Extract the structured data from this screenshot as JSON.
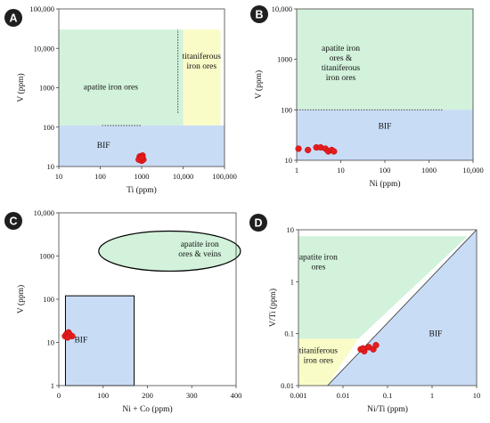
{
  "colors": {
    "green": "#d2f2db",
    "yellow": "#fafcc8",
    "blue": "#c9dcf6",
    "red": "#e31d1d",
    "badge": "#1f1f1f"
  },
  "chart_data": [
    {
      "id": "A",
      "type": "scatter",
      "xlabel": "Ti (ppm)",
      "ylabel": "V (ppm)",
      "xscale": "log",
      "yscale": "log",
      "xlim": [
        10,
        100000
      ],
      "ylim": [
        10,
        100000
      ],
      "xticks": [
        10,
        100,
        1000,
        10000,
        100000
      ],
      "xticklabels": [
        "10",
        "100",
        "1000",
        "10,000",
        "100,000"
      ],
      "yticks": [
        10,
        100,
        1000,
        10000,
        100000
      ],
      "yticklabels": [
        "10",
        "100",
        "1000",
        "10,000",
        "100,000"
      ],
      "fields": [
        {
          "label": "apatite iron ores",
          "color": "green",
          "rect": {
            "x": [
              10,
              10000
            ],
            "y": [
              110,
              30000
            ]
          },
          "text_at": [
            180,
            900
          ]
        },
        {
          "label": "titaniferous iron ores",
          "color": "yellow",
          "rect": {
            "x": [
              10000,
              80000
            ],
            "y": [
              110,
              30000
            ]
          },
          "text_at": [
            28000,
            4200
          ]
        },
        {
          "label": "BIF",
          "color": "blue",
          "rect": {
            "x": [
              10,
              100000
            ],
            "y": [
              10,
              110
            ]
          },
          "text_at": [
            120,
            30
          ]
        }
      ],
      "lines": [
        {
          "x": [
            110,
            1000
          ],
          "y": [
            110,
            110
          ],
          "style": "dotted"
        },
        {
          "x": [
            7500,
            7500
          ],
          "y": [
            230,
            30000
          ],
          "style": "dotted"
        }
      ],
      "points": [
        {
          "x": 900,
          "y": 18
        },
        {
          "x": 1050,
          "y": 19
        },
        {
          "x": 950,
          "y": 16
        },
        {
          "x": 1000,
          "y": 14
        },
        {
          "x": 1100,
          "y": 15
        },
        {
          "x": 850,
          "y": 15
        },
        {
          "x": 1000,
          "y": 17
        }
      ]
    },
    {
      "id": "B",
      "type": "scatter",
      "xlabel": "Ni (ppm)",
      "ylabel": "V (ppm)",
      "xscale": "log",
      "yscale": "log",
      "xlim": [
        1,
        10000
      ],
      "ylim": [
        10,
        10000
      ],
      "xticks": [
        1,
        10,
        100,
        1000,
        10000
      ],
      "xticklabels": [
        "1",
        "10",
        "100",
        "1000",
        "10,000"
      ],
      "yticks": [
        10,
        100,
        1000,
        10000
      ],
      "yticklabels": [
        "10",
        "100",
        "1000",
        "10,000"
      ],
      "fields": [
        {
          "label": "apatite iron ores & titaniferous iron ores",
          "color": "green",
          "rect": {
            "x": [
              1,
              10000
            ],
            "y": [
              100,
              10000
            ]
          },
          "text_at": [
            10,
            800
          ]
        },
        {
          "label": "BIF",
          "color": "blue",
          "rect": {
            "x": [
              1,
              10000
            ],
            "y": [
              10,
              100
            ]
          },
          "text_at": [
            100,
            42
          ]
        }
      ],
      "lines": [
        {
          "x": [
            1,
            2000
          ],
          "y": [
            100,
            100
          ],
          "style": "dotted"
        }
      ],
      "points": [
        {
          "x": 1.1,
          "y": 17
        },
        {
          "x": 1.8,
          "y": 16
        },
        {
          "x": 2.8,
          "y": 18
        },
        {
          "x": 3.5,
          "y": 18
        },
        {
          "x": 4.5,
          "y": 17
        },
        {
          "x": 5.2,
          "y": 15
        },
        {
          "x": 6.2,
          "y": 16
        },
        {
          "x": 7,
          "y": 15
        }
      ]
    },
    {
      "id": "C",
      "type": "scatter",
      "xlabel": "Ni + Co (ppm)",
      "ylabel": "V (ppm)",
      "xscale": "linear",
      "yscale": "log",
      "xlim": [
        0,
        400
      ],
      "ylim": [
        1,
        10000
      ],
      "xticks": [
        0,
        100,
        200,
        300,
        400
      ],
      "xticklabels": [
        "0",
        "100",
        "200",
        "300",
        "400"
      ],
      "yticks": [
        1,
        10,
        100,
        1000,
        10000
      ],
      "yticklabels": [
        "1",
        "10",
        "100",
        "1000",
        "10,000"
      ],
      "fields": [
        {
          "label": "apatite iron ores & veins",
          "color": "green",
          "ellipse": {
            "cx": 250,
            "cy": 1300,
            "x_half": 160,
            "y_range": [
              450,
              3800
            ]
          },
          "text_at": [
            318,
            1300
          ]
        },
        {
          "label": "BIF",
          "color": "blue",
          "rect": {
            "x": [
              15,
              170
            ],
            "y": [
              1,
              120
            ]
          },
          "text_at": [
            50,
            10
          ]
        }
      ],
      "lines": [],
      "points": [
        {
          "x": 14,
          "y": 14
        },
        {
          "x": 18,
          "y": 16
        },
        {
          "x": 22,
          "y": 17
        },
        {
          "x": 25,
          "y": 15
        },
        {
          "x": 30,
          "y": 14
        },
        {
          "x": 20,
          "y": 13
        }
      ]
    },
    {
      "id": "D",
      "type": "scatter",
      "xlabel": "Ni/Ti (ppm)",
      "ylabel": "V/Ti (ppm)",
      "xscale": "log",
      "yscale": "log",
      "xlim": [
        0.001,
        10
      ],
      "ylim": [
        0.01,
        10
      ],
      "xticks": [
        0.001,
        0.01,
        0.1,
        1,
        10
      ],
      "xticklabels": [
        "0.001",
        "0.01",
        "0.1",
        "1",
        "10"
      ],
      "yticks": [
        0.01,
        0.1,
        1,
        10
      ],
      "yticklabels": [
        "0.01",
        "0.1",
        "1",
        "10"
      ],
      "fields": [
        {
          "label": "apatite iron ores",
          "color": "green",
          "polygon": [
            [
              0.001,
              0.08
            ],
            [
              0.001,
              7.5
            ],
            [
              6.3,
              7.5
            ],
            [
              0.022,
              0.08
            ]
          ],
          "text_at": [
            0.0028,
            2.2
          ]
        },
        {
          "label": "titaniferous iron ores",
          "color": "yellow",
          "polygon": [
            [
              0.001,
              0.01
            ],
            [
              0.001,
              0.08
            ],
            [
              0.022,
              0.08
            ],
            [
              0.0045,
              0.01
            ]
          ],
          "text_at": [
            0.0028,
            0.035
          ]
        },
        {
          "label": "BIF",
          "color": "blue",
          "polygon": [
            [
              0.0045,
              0.01
            ],
            [
              10,
              0.01
            ],
            [
              10,
              11
            ],
            [
              0.0045,
              0.01
            ]
          ],
          "text_at": [
            1.2,
            0.09
          ]
        }
      ],
      "lines": [
        {
          "x": [
            0.0045,
            10
          ],
          "y": [
            0.01,
            11
          ],
          "style": "solid"
        }
      ],
      "points": [
        {
          "x": 0.025,
          "y": 0.05
        },
        {
          "x": 0.03,
          "y": 0.046
        },
        {
          "x": 0.038,
          "y": 0.055
        },
        {
          "x": 0.048,
          "y": 0.05
        },
        {
          "x": 0.055,
          "y": 0.06
        },
        {
          "x": 0.028,
          "y": 0.052
        }
      ]
    }
  ]
}
